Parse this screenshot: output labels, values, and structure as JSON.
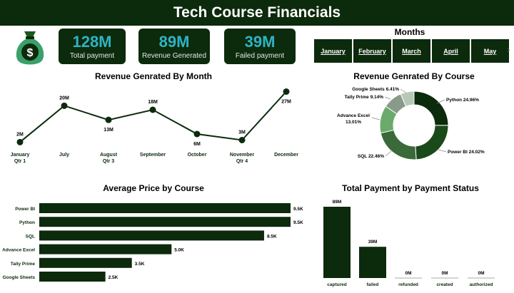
{
  "title": "Tech Course Financials",
  "kpis": [
    {
      "value": "128M",
      "label": "Total payment"
    },
    {
      "value": "89M",
      "label": "Revenue Generated"
    },
    {
      "value": "39M",
      "label": "Failed payment"
    }
  ],
  "months_slicer": {
    "title": "Months",
    "items": [
      "January",
      "February",
      "March",
      "April",
      "May"
    ]
  },
  "icons": {
    "money_bag": "money-bag-icon",
    "next": "chevron-right-icon",
    "next_glyph": "›"
  },
  "colors": {
    "dark_green": "#0c2a0c",
    "kpi_value": "#2fb3c6"
  },
  "chart_data": [
    {
      "type": "line",
      "title": "Revenue Genrated By Month",
      "categories": [
        "January Qtr 1",
        "July",
        "August Qtr 3",
        "September",
        "October",
        "November Qtr 4",
        "December"
      ],
      "category_lines": [
        [
          "January",
          "Qtr 1"
        ],
        [
          "July"
        ],
        [
          "August",
          "Qtr 3"
        ],
        [
          "September"
        ],
        [
          "October"
        ],
        [
          "November",
          "Qtr 4"
        ],
        [
          "December"
        ]
      ],
      "values": [
        2,
        20,
        13,
        18,
        6,
        3,
        27
      ],
      "data_labels": [
        "2M",
        "20M",
        "13M",
        "18M",
        "6M",
        "3M",
        "27M"
      ],
      "ylim": [
        0,
        30
      ]
    },
    {
      "type": "pie",
      "title": "Revenue Genrated By Course",
      "donut": true,
      "slices": [
        {
          "label": "Python",
          "pct": 24.96,
          "text": "Python 24.96%",
          "color": "#0c2a0c"
        },
        {
          "label": "Power BI",
          "pct": 24.02,
          "text": "Power BI 24.02%",
          "color": "#1a4a1a"
        },
        {
          "label": "SQL",
          "pct": 22.46,
          "text": "SQL 22.46%",
          "color": "#3a6a3a"
        },
        {
          "label": "Advance Excel",
          "pct": 13.01,
          "text_lines": [
            "Advance Excel",
            "13.01%"
          ],
          "color": "#6aaa6a"
        },
        {
          "label": "Tally Prime",
          "pct": 9.14,
          "text": "Tally Prime 9.14%",
          "color": "#8a9a8a"
        },
        {
          "label": "Google Sheets",
          "pct": 6.41,
          "text": "Google Sheets 6.41%",
          "color": "#b8c8b8"
        }
      ]
    },
    {
      "type": "bar",
      "orientation": "horizontal",
      "title": "Average Price by Course",
      "categories": [
        "Power BI",
        "Python",
        "SQL",
        "Advance Excel",
        "Tally Prime",
        "Google Sheets"
      ],
      "values": [
        9.5,
        9.5,
        8.5,
        5.0,
        3.5,
        2.5
      ],
      "data_labels": [
        "9.5K",
        "9.5K",
        "8.5K",
        "5.0K",
        "3.5K",
        "2.5K"
      ],
      "xlim": [
        0,
        9.5
      ]
    },
    {
      "type": "bar",
      "title": "Total Payment by Payment Status",
      "categories": [
        "captured",
        "failed",
        "refunded",
        "created",
        "authorized"
      ],
      "values": [
        89,
        39,
        0,
        0,
        0
      ],
      "data_labels": [
        "89M",
        "39M",
        "0M",
        "0M",
        "0M"
      ],
      "ylim": [
        0,
        89
      ]
    }
  ]
}
